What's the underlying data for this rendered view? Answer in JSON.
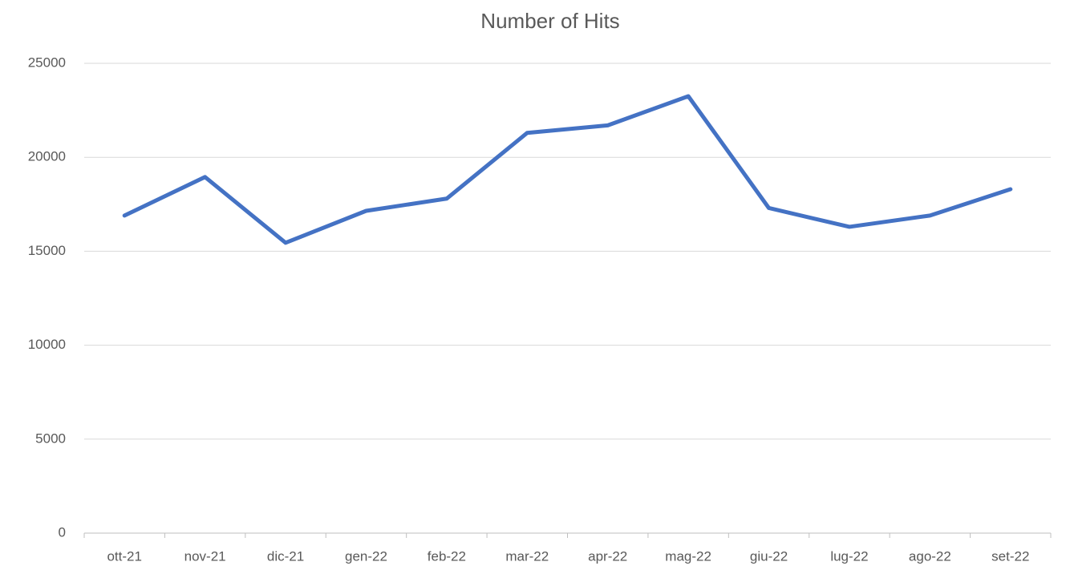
{
  "chart_data": {
    "type": "line",
    "title": "Number of Hits",
    "categories": [
      "ott-21",
      "nov-21",
      "dic-21",
      "gen-22",
      "feb-22",
      "mar-22",
      "apr-22",
      "mag-22",
      "giu-22",
      "lug-22",
      "ago-22",
      "set-22"
    ],
    "values": [
      16900,
      18950,
      15450,
      17150,
      17800,
      21300,
      21700,
      23250,
      17300,
      16300,
      16900,
      18300
    ],
    "color": "#4472c4",
    "ylim": [
      0,
      25000
    ],
    "yticks": [
      0,
      5000,
      10000,
      15000,
      20000,
      25000
    ],
    "grid": true
  }
}
